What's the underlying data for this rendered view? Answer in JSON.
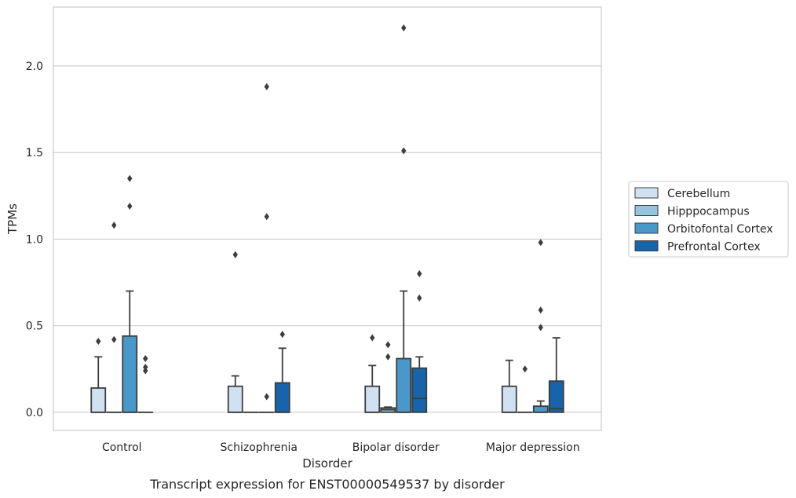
{
  "chart_data": {
    "type": "box",
    "title": "Transcript expression for ENST00000549537 by disorder",
    "xlabel": "Disorder",
    "ylabel": "TPMs",
    "ylim": [
      -0.105,
      2.34
    ],
    "yticks": [
      0.0,
      0.5,
      1.0,
      1.5,
      2.0
    ],
    "ytick_labels": [
      "0.0",
      "0.5",
      "1.0",
      "1.5",
      "2.0"
    ],
    "grid": true,
    "legend_position": "right",
    "categories": [
      "Control",
      "Schizophrenia",
      "Bipolar disorder",
      "Major depression"
    ],
    "series": [
      {
        "name": "Cerebellum",
        "color": "#d0e1f2",
        "boxes": [
          {
            "q1": 0.0,
            "median": 0.0,
            "q3": 0.14,
            "whisker_low": 0.0,
            "whisker_high": 0.32,
            "outliers": [
              0.41
            ]
          },
          {
            "q1": 0.0,
            "median": 0.0,
            "q3": 0.15,
            "whisker_low": 0.0,
            "whisker_high": 0.21,
            "outliers": [
              0.91
            ]
          },
          {
            "q1": 0.0,
            "median": 0.0,
            "q3": 0.15,
            "whisker_low": 0.0,
            "whisker_high": 0.27,
            "outliers": [
              0.43
            ]
          },
          {
            "q1": 0.0,
            "median": 0.0,
            "q3": 0.15,
            "whisker_low": 0.0,
            "whisker_high": 0.3,
            "outliers": []
          }
        ]
      },
      {
        "name": "Hipppocampus",
        "color": "#94c4df",
        "boxes": [
          {
            "q1": 0.0,
            "median": 0.0,
            "q3": 0.0,
            "whisker_low": 0.0,
            "whisker_high": 0.0,
            "outliers": [
              0.42,
              1.08
            ]
          },
          {
            "q1": 0.0,
            "median": 0.0,
            "q3": 0.0,
            "whisker_low": 0.0,
            "whisker_high": 0.0,
            "outliers": []
          },
          {
            "q1": 0.0,
            "median": 0.015,
            "q3": 0.025,
            "whisker_low": 0.0,
            "whisker_high": 0.03,
            "outliers": [
              0.32,
              0.39
            ]
          },
          {
            "q1": 0.0,
            "median": 0.0,
            "q3": 0.0,
            "whisker_low": 0.0,
            "whisker_high": 0.0,
            "outliers": [
              0.25
            ]
          }
        ]
      },
      {
        "name": "Orbitofontal Cortex",
        "color": "#4a98c9",
        "boxes": [
          {
            "q1": 0.0,
            "median": 0.0,
            "q3": 0.44,
            "whisker_low": 0.0,
            "whisker_high": 0.7,
            "outliers": [
              1.19,
              1.35
            ]
          },
          {
            "q1": 0.0,
            "median": 0.0,
            "q3": 0.0,
            "whisker_low": 0.0,
            "whisker_high": 0.0,
            "outliers": [
              0.09,
              1.13,
              1.88
            ]
          },
          {
            "q1": 0.0,
            "median": 0.0,
            "q3": 0.31,
            "whisker_low": 0.0,
            "whisker_high": 0.7,
            "outliers": [
              1.51,
              2.22
            ]
          },
          {
            "q1": 0.0,
            "median": 0.0,
            "q3": 0.035,
            "whisker_low": 0.0,
            "whisker_high": 0.065,
            "outliers": [
              0.49,
              0.59,
              0.98
            ]
          }
        ]
      },
      {
        "name": "Prefrontal Cortex",
        "color": "#1764ab",
        "boxes": [
          {
            "q1": 0.0,
            "median": 0.0,
            "q3": 0.0,
            "whisker_low": 0.0,
            "whisker_high": 0.0,
            "outliers": [
              0.24,
              0.26,
              0.31
            ]
          },
          {
            "q1": 0.0,
            "median": 0.0,
            "q3": 0.17,
            "whisker_low": 0.0,
            "whisker_high": 0.37,
            "outliers": [
              0.45
            ]
          },
          {
            "q1": 0.0,
            "median": 0.08,
            "q3": 0.255,
            "whisker_low": 0.0,
            "whisker_high": 0.32,
            "outliers": [
              0.66,
              0.8
            ]
          },
          {
            "q1": 0.0,
            "median": 0.02,
            "q3": 0.18,
            "whisker_low": 0.0,
            "whisker_high": 0.43,
            "outliers": []
          }
        ]
      }
    ]
  }
}
